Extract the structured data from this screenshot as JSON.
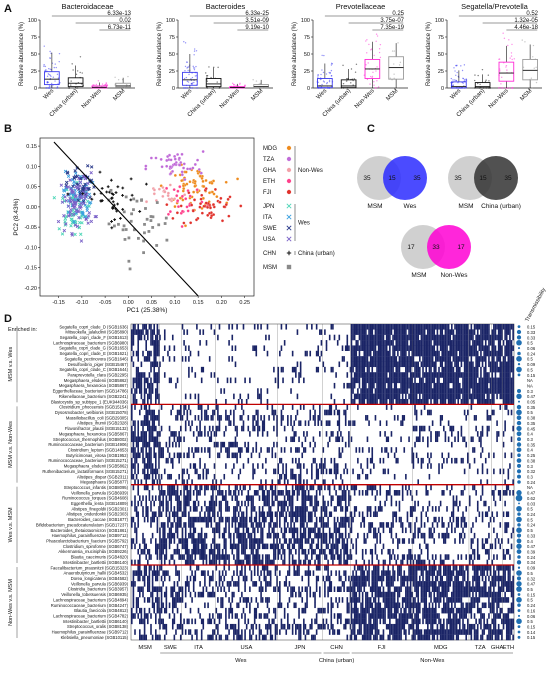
{
  "panel_letters": [
    "A",
    "B",
    "C",
    "D"
  ],
  "colors": {
    "Wes": "#3b3bf0",
    "China (urban)": "#111111",
    "Non-Wes": "#ff2bd6",
    "MSM": "#9a9a9a",
    "heatmap_present": "#1a2466",
    "heatmap_bg": "#ffffff",
    "separator": "#c00000"
  },
  "chart_data": [
    {
      "type": "box",
      "title": "Bacteroidaceae",
      "ylabel": "Relative abundance (%)",
      "categories": [
        "Wes",
        "China (urban)",
        "Non-Wes",
        "MSM"
      ],
      "yticks": [
        "0",
        "25",
        "50",
        "75",
        "100"
      ],
      "ylim": [
        0,
        100
      ],
      "boxes": [
        {
          "q1": 5,
          "median": 13,
          "q3": 24,
          "whisker_low": 0,
          "whisker_high": 52
        },
        {
          "q1": 2,
          "median": 7,
          "q3": 15,
          "whisker_low": 0,
          "whisker_high": 33
        },
        {
          "q1": 0.3,
          "median": 1,
          "q3": 3,
          "whisker_low": 0,
          "whisker_high": 8
        },
        {
          "q1": 1,
          "median": 3,
          "q3": 7,
          "whisker_low": 0,
          "whisker_high": 15
        }
      ],
      "pvalues": [
        "6.33e-13",
        "0.02",
        "6.73e-11"
      ]
    },
    {
      "type": "box",
      "title": "Bacteroides",
      "ylabel": "Relative abundance (%)",
      "categories": [
        "Wes",
        "China (urban)",
        "Non-Wes",
        "MSM"
      ],
      "yticks": [
        "0",
        "25",
        "50",
        "75",
        "100"
      ],
      "ylim": [
        0,
        100
      ],
      "boxes": [
        {
          "q1": 4,
          "median": 12,
          "q3": 23,
          "whisker_low": 0,
          "whisker_high": 50
        },
        {
          "q1": 2,
          "median": 6,
          "q3": 14,
          "whisker_low": 0,
          "whisker_high": 30
        },
        {
          "q1": 0.2,
          "median": 0.8,
          "q3": 2,
          "whisker_low": 0,
          "whisker_high": 6
        },
        {
          "q1": 0.5,
          "median": 2,
          "q3": 5,
          "whisker_low": 0,
          "whisker_high": 12
        }
      ],
      "pvalues": [
        "6.33e-25",
        "3.51e-09",
        "9.19e-10"
      ]
    },
    {
      "type": "box",
      "title": "Prevotellaceae",
      "ylabel": "Relative abundance (%)",
      "categories": [
        "Wes",
        "China (urban)",
        "Non-Wes",
        "MSM"
      ],
      "yticks": [
        "0",
        "25",
        "50",
        "75",
        "100"
      ],
      "ylim": [
        0,
        100
      ],
      "boxes": [
        {
          "q1": 0.5,
          "median": 3,
          "q3": 14,
          "whisker_low": 0,
          "whisker_high": 36
        },
        {
          "q1": 0.5,
          "median": 3,
          "q3": 12,
          "whisker_low": 0,
          "whisker_high": 28
        },
        {
          "q1": 14,
          "median": 28,
          "q3": 42,
          "whisker_low": 0,
          "whisker_high": 68
        },
        {
          "q1": 13,
          "median": 30,
          "q3": 46,
          "whisker_low": 0,
          "whisker_high": 66
        }
      ],
      "pvalues": [
        "0.25",
        "3.75e-07",
        "7.35e-19"
      ]
    },
    {
      "type": "box",
      "title": "Segatella/Prevotella",
      "ylabel": "Relative abundance (%)",
      "categories": [
        "Wes",
        "China (urban)",
        "Non-Wes",
        "MSM"
      ],
      "yticks": [
        "0",
        "25",
        "50",
        "75",
        "100"
      ],
      "ylim": [
        0,
        100
      ],
      "boxes": [
        {
          "q1": 0.2,
          "median": 2,
          "q3": 9,
          "whisker_low": 0,
          "whisker_high": 26
        },
        {
          "q1": 0.3,
          "median": 2,
          "q3": 8,
          "whisker_low": 0,
          "whisker_high": 20
        },
        {
          "q1": 10,
          "median": 22,
          "q3": 38,
          "whisker_low": 0,
          "whisker_high": 62
        },
        {
          "q1": 12,
          "median": 26,
          "q3": 42,
          "whisker_low": 0,
          "whisker_high": 64
        }
      ],
      "pvalues": [
        "0.52",
        "1.32e-05",
        "4.46e-18"
      ]
    },
    {
      "type": "scatter",
      "xlabel": "PC1 (25.38%)",
      "ylabel": "PC2 (8.43%)",
      "xticks": [
        "-0.15",
        "-0.10",
        "-0.05",
        "0.00",
        "0.05",
        "0.10",
        "0.15",
        "0.20",
        "0.25"
      ],
      "yticks": [
        "-0.20",
        "-0.15",
        "-0.10",
        "-0.05",
        "0.00",
        "0.05",
        "0.10",
        "0.15"
      ],
      "xlim": [
        -0.19,
        0.27
      ],
      "ylim": [
        -0.22,
        0.17
      ],
      "divider_line": [
        [
          -0.16,
          0.16
        ],
        [
          0.15,
          -0.22
        ]
      ],
      "legend": {
        "groups": [
          {
            "label": "Non-Wes",
            "items": [
              {
                "name": "MDG",
                "color": "#ee8a1c",
                "marker": "circle"
              },
              {
                "name": "TZA",
                "color": "#c06ad8",
                "marker": "circle"
              },
              {
                "name": "GHA",
                "color": "#f2a0a8",
                "marker": "circle"
              },
              {
                "name": "ETH",
                "color": "#ff3f8a",
                "marker": "circle"
              },
              {
                "name": "FJI",
                "color": "#e0302a",
                "marker": "circle"
              }
            ]
          },
          {
            "label": "Wes",
            "items": [
              {
                "name": "JPN",
                "color": "#4fd6b8",
                "marker": "x"
              },
              {
                "name": "ITA",
                "color": "#3aa0e0",
                "marker": "x"
              },
              {
                "name": "SWE",
                "color": "#2a3a8a",
                "marker": "x"
              },
              {
                "name": "USA",
                "color": "#7a62c8",
                "marker": "x"
              }
            ]
          },
          {
            "label": "China (urban)",
            "items": [
              {
                "name": "CHN",
                "color": "#111111",
                "marker": "plus"
              }
            ]
          },
          {
            "label": "",
            "items": [
              {
                "name": "MSM",
                "color": "#8a8a8a",
                "marker": "square"
              }
            ]
          }
        ]
      },
      "clusters": [
        {
          "name": "MDG",
          "cx": 0.14,
          "cy": 0.05,
          "sx": 0.05,
          "sy": 0.04,
          "n": 70
        },
        {
          "name": "TZA",
          "cx": 0.1,
          "cy": 0.1,
          "sx": 0.05,
          "sy": 0.03,
          "n": 45
        },
        {
          "name": "GHA",
          "cx": 0.08,
          "cy": 0.03,
          "sx": 0.04,
          "sy": 0.03,
          "n": 20
        },
        {
          "name": "ETH",
          "cx": 0.12,
          "cy": 0.02,
          "sx": 0.04,
          "sy": 0.04,
          "n": 25
        },
        {
          "name": "FJI",
          "cx": 0.17,
          "cy": 0.0,
          "sx": 0.05,
          "sy": 0.04,
          "n": 50
        },
        {
          "name": "JPN",
          "cx": -0.12,
          "cy": -0.01,
          "sx": 0.025,
          "sy": 0.05,
          "n": 60
        },
        {
          "name": "ITA",
          "cx": -0.11,
          "cy": 0.03,
          "sx": 0.025,
          "sy": 0.05,
          "n": 60
        },
        {
          "name": "SWE",
          "cx": -0.1,
          "cy": 0.05,
          "sx": 0.025,
          "sy": 0.04,
          "n": 45
        },
        {
          "name": "USA",
          "cx": -0.11,
          "cy": 0.01,
          "sx": 0.03,
          "sy": 0.06,
          "n": 80
        },
        {
          "name": "CHN",
          "cx": -0.04,
          "cy": 0.02,
          "sx": 0.05,
          "sy": 0.05,
          "n": 40
        },
        {
          "name": "MSM",
          "cx": 0.02,
          "cy": -0.04,
          "sx": 0.06,
          "sy": 0.06,
          "n": 40
        }
      ]
    },
    {
      "type": "venn",
      "diagrams": [
        {
          "left": {
            "label": "MSM",
            "count": "35",
            "color": "#c8c8c8"
          },
          "overlap": "15",
          "right": {
            "label": "Wes",
            "count": "35",
            "color": "#2b2bff"
          }
        },
        {
          "left": {
            "label": "MSM",
            "count": "35",
            "color": "#c8c8c8"
          },
          "overlap": "15",
          "right": {
            "label": "China (urban)",
            "count": "35",
            "color": "#333333"
          }
        },
        {
          "left": {
            "label": "MSM",
            "count": "17",
            "color": "#c8c8c8"
          },
          "overlap": "33",
          "right": {
            "label": "Non-Wes",
            "count": "17",
            "color": "#ff00d4"
          }
        }
      ]
    },
    {
      "type": "heatmap",
      "enriched_label": "Enriched in:",
      "transmissibility_label": "Transmissibility",
      "row_groups": [
        {
          "label": "MSM v.s. Wes",
          "rows": [
            "Segatella_copri_clade_D (SGB1636)",
            "Mitsuokella_jalaludinii (SGB5890)",
            "Segatella_copri_clade_F (SGB1613)",
            "Lachnospiraceae_bacterium (SGB6980)",
            "Segatella_copri_clade_G (SGB1653)",
            "Segatella_copri_clade_E (SGB1621)",
            "Segatella_pectinovora (SGB1646)",
            "Desulfovibrio_piger (SGB15467)",
            "Segatella_copri_clade_C (SGB1644)",
            "Paraprevotella_clara (SGB2295)",
            "Megasphaera_elsdenii (SGB5862)",
            "Megasphaera_hexanoica (SGB5867)",
            "Eggerthellaceae_bacterium (SGB14786)",
            "Rikenellaceae_bacterium (SGB2241)",
            "Blastocystis_sp_subtype_1 (EUK944036)"
          ]
        },
        {
          "label": "MSM v.s. Non-Wes",
          "rows": [
            "Clostridium_phoceensis (SGB15154)",
            "Dysosmobacter_welbionis (SGB15078)",
            "Massiliobacillus_coli (SGB29305)",
            "Alistipes_ihumii (SGB2328)",
            "Flavonifractor_plautii (SGB15132)",
            "Megasphaera_hexanoica (SGB5867)",
            "Streptococcus_thermophilus (SGB8002)",
            "Ruminococcaceae_bacterium (SGB14906)",
            "Clostridium_leptum (SGB14853)",
            "Butyricimonas_virosa (SGB1952)",
            "Ruminococcaceae_bacterium (SGB15271)",
            "Megasphaera_elsdenii (SGB5862)",
            "Ruthenibacterium_lactatiformans (SGB15271)",
            "Alistipes_dispar (SGB2311)",
            "Megasphaera (SGB5877)"
          ]
        },
        {
          "label": "Wes v.s. MSM",
          "rows": [
            "Streptococcus_infantis (SGB8095)",
            "Veillonella_parvula (SGB6939)",
            "Ruminococcus_torques (SGB4608)",
            "Eggerthella_lenta (SGB14809)",
            "Alistipes_finegoldii (SGB2301)",
            "Alistipes_onderdonkii (SGB2303)",
            "Bacteroides_caccae (SGB1877)",
            "Bifidobacterium_pseudocatenulatum (SGB17237)",
            "Bacteroides_thetaiotaomicron (SGB1861)",
            "Haemophilus_parainfluenzae (SGB9712)",
            "Phascolarctobacterium_faecium (SGB5792)",
            "Clostridium_spiroforme (SGB6747)",
            "Akkermansia_muciniphila (SGB9226)",
            "Blautia_caecimuris (SGB4820)",
            "Intestinibacter_bartlettii (SGB6140)"
          ]
        },
        {
          "label": "Non-Wes v.s. MSM",
          "rows": [
            "Faecalibacterium_prausnitzii (SGB15323)",
            "Anaerobutyricum_hallii (SGB4532)",
            "Dorea_longicatena (SGB4582)",
            "Veillonella_parvula (SGB6939)",
            "Clostridia_bacterium (SGB3957)",
            "Veillonella_tobetsuensis (SGB6935)",
            "Lachnospiraceae_bacterium (SGB4894)",
            "Ruminococcaceae_bacterium (SGB4247)",
            "Blautia_faecicola (SGB4812)",
            "Lachnospiraceae_bacterium (SGB4782)",
            "Intestinibacter_bartlettii (SGB6140)",
            "Streptococcus_oralis (SGB8138)",
            "Haemophilus_parainfluenzae (SGB9712)",
            "Klebsiella_pneumoniae (SGB10115)"
          ]
        }
      ],
      "transmissibility_values": [
        [
          "0.15",
          "0.33",
          "0.33",
          "0.5",
          "0.06",
          "0.24",
          "0.5",
          "0.09",
          "0.5",
          "0.15",
          "NA",
          "NA",
          "0.3",
          "0.47",
          "0.05"
        ],
        [
          "0.35",
          "0.5",
          "0.38",
          "0.35",
          "0.45",
          "0.4",
          "0.3",
          "0.35",
          "0.4",
          "0.25",
          "0.38",
          "0.3",
          "0.32",
          "0.3",
          "0.24"
        ],
        [
          "NA",
          "0.47",
          "0.62",
          "0.03",
          "0.5",
          "0.24",
          "0.5",
          "0.24",
          "0.5",
          "0.33",
          "0.4",
          "0.47",
          "0.39",
          "0.24",
          "0.34"
        ],
        [
          "0.09",
          "0.5",
          "0.32",
          "0.47",
          "0.5",
          "0.15",
          "0.5",
          "0.24",
          "0.16",
          "0.06",
          "0.5",
          "0.15",
          "0.14",
          "0.15"
        ]
      ],
      "columns": [
        {
          "name": "MSM",
          "width": 5
        },
        {
          "name": "SWE",
          "width": 4
        },
        {
          "name": "ITA",
          "width": 6
        },
        {
          "name": "USA",
          "width": 11
        },
        {
          "name": "JPN",
          "width": 8
        },
        {
          "name": "CHN",
          "width": 5
        },
        {
          "name": "FJI",
          "width": 11
        },
        {
          "name": "MDG",
          "width": 10
        },
        {
          "name": "TZA",
          "width": 4
        },
        {
          "name": "GHA",
          "width": 2
        },
        {
          "name": "ETH",
          "width": 2
        }
      ],
      "column_groups": [
        {
          "label": "Wes",
          "from": 1,
          "to": 4
        },
        {
          "label": "China (urban)",
          "from": 5,
          "to": 5
        },
        {
          "label": "Non-Wes",
          "from": 6,
          "to": 10
        }
      ]
    }
  ]
}
